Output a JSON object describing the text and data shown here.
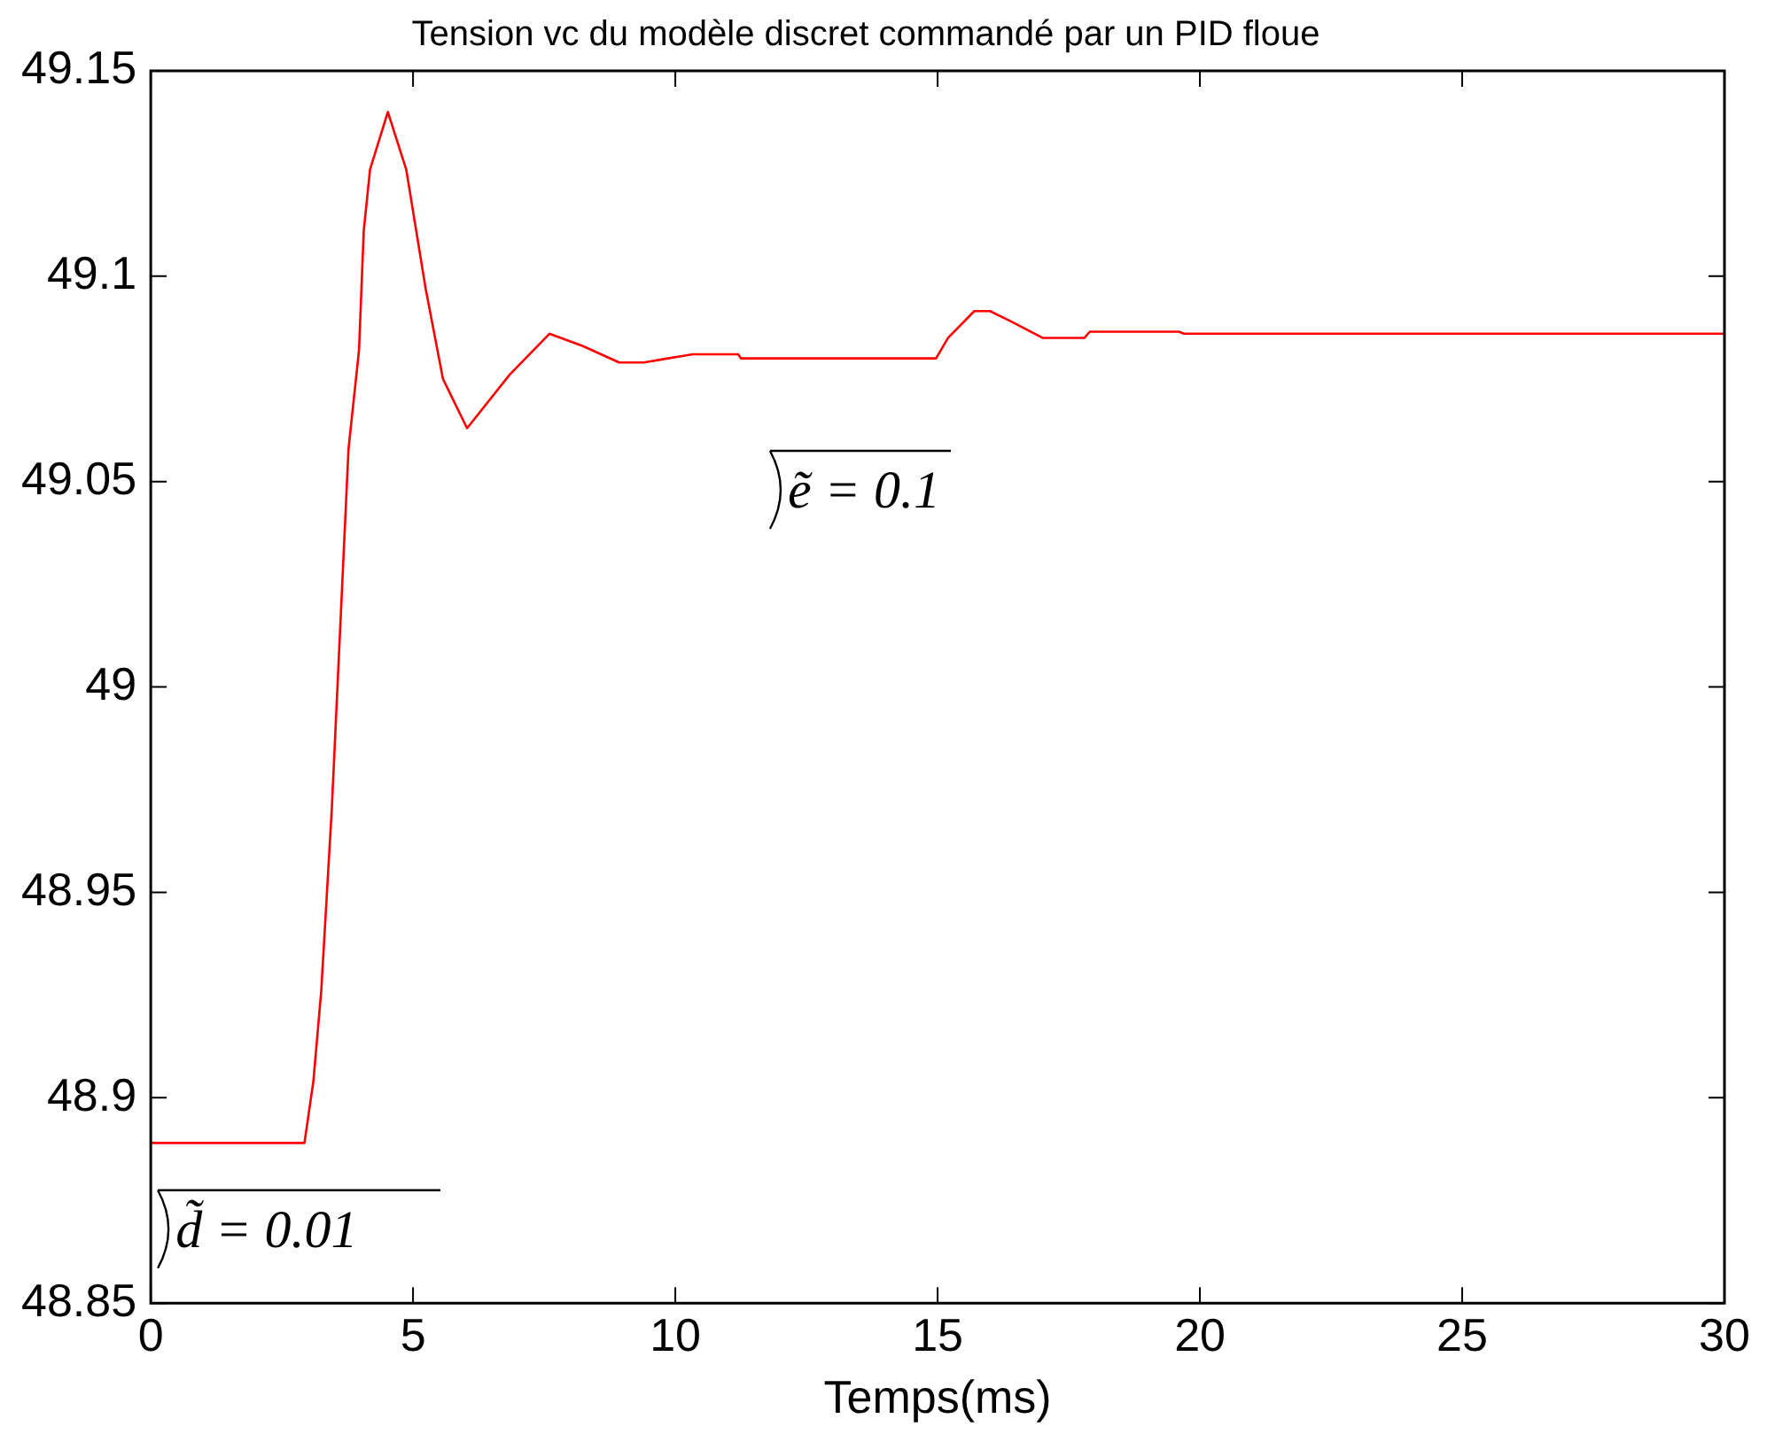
{
  "chart_data": {
    "type": "line",
    "title": "Tension vc du modèle discret commandé par un PID floue",
    "xlabel": "Temps(ms)",
    "x": [
      0,
      2.93,
      3.1,
      3.25,
      3.45,
      3.65,
      3.77,
      3.97,
      4.06,
      4.18,
      4.52,
      4.87,
      5.24,
      5.57,
      6.03,
      6.84,
      7.6,
      8.24,
      8.93,
      9.4,
      9.86,
      10.33,
      11.2,
      11.25,
      14.97,
      15.2,
      15.7,
      16.0,
      16.4,
      17.0,
      17.8,
      17.9,
      19.6,
      19.7,
      30
    ],
    "series": [
      {
        "color": "#ff0000",
        "values": [
          48.889,
          48.889,
          48.904,
          48.926,
          48.97,
          49.025,
          49.058,
          49.082,
          49.111,
          49.126,
          49.14,
          49.126,
          49.097,
          49.075,
          49.063,
          49.076,
          49.086,
          49.083,
          49.079,
          49.079,
          49.08,
          49.081,
          49.081,
          49.08,
          49.08,
          49.085,
          49.0915,
          49.0915,
          49.089,
          49.085,
          49.085,
          49.0865,
          49.0865,
          49.086,
          49.086
        ]
      }
    ],
    "xlim": [
      0,
      30
    ],
    "xticks": [
      0,
      5,
      10,
      15,
      20,
      25,
      30
    ],
    "ylim": [
      48.85,
      49.15
    ],
    "yticks": [
      48.85,
      48.9,
      48.95,
      49,
      49.05,
      49.1,
      49.15
    ],
    "grid": false,
    "legend": false,
    "marker": "none",
    "line_style": "solid",
    "annotations": [
      "ẽ = 0.1",
      "d̃ = 0.01"
    ]
  }
}
